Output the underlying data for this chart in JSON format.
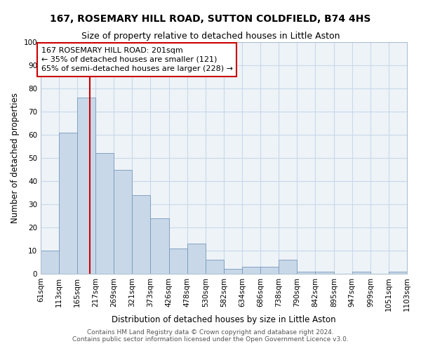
{
  "title": "167, ROSEMARY HILL ROAD, SUTTON COLDFIELD, B74 4HS",
  "subtitle": "Size of property relative to detached houses in Little Aston",
  "xlabel": "Distribution of detached houses by size in Little Aston",
  "ylabel": "Number of detached properties",
  "bin_edges": [
    61,
    113,
    165,
    217,
    269,
    321,
    373,
    426,
    478,
    530,
    582,
    634,
    686,
    738,
    790,
    842,
    895,
    947,
    999,
    1051,
    1103
  ],
  "bin_labels": [
    "61sqm",
    "113sqm",
    "165sqm",
    "217sqm",
    "269sqm",
    "321sqm",
    "373sqm",
    "426sqm",
    "478sqm",
    "530sqm",
    "582sqm",
    "634sqm",
    "686sqm",
    "738sqm",
    "790sqm",
    "842sqm",
    "895sqm",
    "947sqm",
    "999sqm",
    "1051sqm",
    "1103sqm"
  ],
  "bar_heights": [
    10,
    61,
    76,
    52,
    45,
    34,
    24,
    11,
    13,
    6,
    2,
    3,
    3,
    6,
    1,
    1,
    0,
    1,
    0,
    1
  ],
  "bar_color": "#c8d8e8",
  "bar_edge_color": "#7799bb",
  "property_size": 201,
  "red_line_color": "#cc0000",
  "annotation_text": "167 ROSEMARY HILL ROAD: 201sqm\n← 35% of detached houses are smaller (121)\n65% of semi-detached houses are larger (228) →",
  "annotation_box_color": "#ffffff",
  "annotation_box_edge_color": "#cc0000",
  "ylim": [
    0,
    100
  ],
  "yticks": [
    0,
    10,
    20,
    30,
    40,
    50,
    60,
    70,
    80,
    90,
    100
  ],
  "grid_color": "#c8d8e8",
  "bg_color": "#eef3f8",
  "footnote1": "Contains HM Land Registry data © Crown copyright and database right 2024.",
  "footnote2": "Contains public sector information licensed under the Open Government Licence v3.0.",
  "title_fontsize": 10,
  "subtitle_fontsize": 9,
  "axis_label_fontsize": 8.5,
  "tick_fontsize": 7.5,
  "annotation_fontsize": 8,
  "footnote_fontsize": 6.5
}
